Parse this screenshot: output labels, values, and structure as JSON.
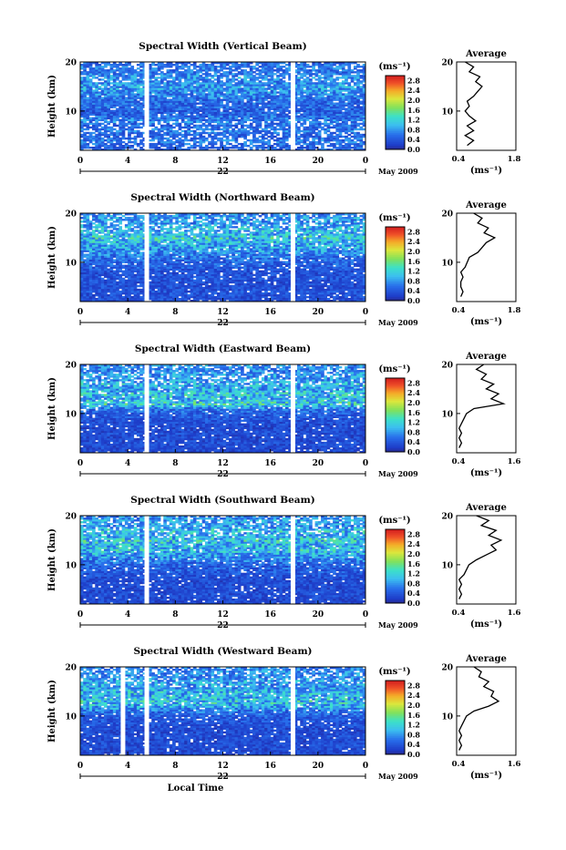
{
  "chart_data": [
    {
      "type": "heatmap",
      "title": "Spectral Width (Vertical Beam)",
      "ylabel": "Height (km)",
      "xticks": [
        "0",
        "4",
        "8",
        "12",
        "16",
        "20",
        "0"
      ],
      "yticks": [
        "10",
        "20"
      ],
      "xlim": [
        0,
        24
      ],
      "ylim": [
        2,
        20
      ],
      "date_label": "22",
      "month_label": "May 2009",
      "gaps_hours": [
        5.6,
        17.9
      ],
      "colorbar": {
        "unit": "(ms⁻¹)",
        "ticks": [
          "0.0",
          "0.4",
          "0.8",
          "1.2",
          "1.6",
          "2.0",
          "2.4",
          "2.8"
        ],
        "range": [
          0.0,
          3.0
        ]
      },
      "average_profile": {
        "title": "Average",
        "xlabel": "(ms⁻¹)",
        "xticks": [
          "0.4",
          "1.8"
        ],
        "yticks": [
          "10",
          "20"
        ],
        "xlim": [
          0.4,
          1.8
        ],
        "ylim": [
          2,
          20
        ],
        "heights_km": [
          3,
          4,
          5,
          6,
          7,
          8,
          9,
          10,
          11,
          12,
          13,
          14,
          15,
          16,
          17,
          18,
          19,
          20
        ],
        "values_ms": [
          0.65,
          0.8,
          0.6,
          0.8,
          0.65,
          0.85,
          0.7,
          0.6,
          0.7,
          0.65,
          0.8,
          0.9,
          1.0,
          0.85,
          0.95,
          0.7,
          0.8,
          0.6
        ]
      }
    },
    {
      "type": "heatmap",
      "title": "Spectral Width (Northward Beam)",
      "ylabel": "Height (km)",
      "xticks": [
        "0",
        "4",
        "8",
        "12",
        "16",
        "20",
        "0"
      ],
      "yticks": [
        "10",
        "20"
      ],
      "xlim": [
        0,
        24
      ],
      "ylim": [
        2,
        20
      ],
      "date_label": "22",
      "month_label": "May 2009",
      "gaps_hours": [
        5.6,
        17.9
      ],
      "colorbar": {
        "unit": "(ms⁻¹)",
        "ticks": [
          "0.0",
          "0.4",
          "0.8",
          "1.2",
          "1.6",
          "2.0",
          "2.4",
          "2.8"
        ],
        "range": [
          0.0,
          3.0
        ]
      },
      "average_profile": {
        "title": "Average",
        "xlabel": "(ms⁻¹)",
        "xticks": [
          "0.4",
          "1.8"
        ],
        "yticks": [
          "10",
          "20"
        ],
        "xlim": [
          0.4,
          1.8
        ],
        "ylim": [
          2,
          20
        ],
        "heights_km": [
          3,
          4,
          5,
          6,
          7,
          8,
          9,
          10,
          11,
          12,
          13,
          14,
          15,
          16,
          17,
          18,
          19,
          20
        ],
        "values_ms": [
          0.5,
          0.55,
          0.5,
          0.5,
          0.55,
          0.5,
          0.6,
          0.65,
          0.7,
          0.9,
          1.0,
          1.1,
          1.3,
          1.05,
          1.15,
          0.9,
          1.0,
          0.8
        ]
      }
    },
    {
      "type": "heatmap",
      "title": "Spectral Width (Eastward Beam)",
      "ylabel": "Height (km)",
      "xticks": [
        "0",
        "4",
        "8",
        "12",
        "16",
        "20",
        "0"
      ],
      "yticks": [
        "10",
        "20"
      ],
      "xlim": [
        0,
        24
      ],
      "ylim": [
        2,
        20
      ],
      "date_label": "22",
      "month_label": "May 2009",
      "gaps_hours": [
        5.6,
        17.9
      ],
      "colorbar": {
        "unit": "(ms⁻¹)",
        "ticks": [
          "0.0",
          "0.4",
          "0.8",
          "1.2",
          "1.6",
          "2.0",
          "2.4",
          "2.8"
        ],
        "range": [
          0.0,
          3.0
        ]
      },
      "average_profile": {
        "title": "Average",
        "xlabel": "(ms⁻¹)",
        "xticks": [
          "0.4",
          "1.6"
        ],
        "yticks": [
          "10",
          "20"
        ],
        "xlim": [
          0.4,
          1.6
        ],
        "ylim": [
          2,
          20
        ],
        "heights_km": [
          3,
          4,
          5,
          6,
          7,
          8,
          9,
          10,
          11,
          12,
          13,
          14,
          15,
          16,
          17,
          18,
          19,
          20
        ],
        "values_ms": [
          0.45,
          0.5,
          0.45,
          0.5,
          0.45,
          0.5,
          0.55,
          0.6,
          0.75,
          1.35,
          1.1,
          1.25,
          1.0,
          1.15,
          0.9,
          1.0,
          0.8,
          0.95
        ]
      }
    },
    {
      "type": "heatmap",
      "title": "Spectral Width (Southward Beam)",
      "ylabel": "Height (km)",
      "xticks": [
        "0",
        "4",
        "8",
        "12",
        "16",
        "20",
        "0"
      ],
      "yticks": [
        "10",
        "20"
      ],
      "xlim": [
        0,
        24
      ],
      "ylim": [
        2,
        20
      ],
      "date_label": "22",
      "month_label": "May 2009",
      "gaps_hours": [
        5.6,
        17.9
      ],
      "colorbar": {
        "unit": "(ms⁻¹)",
        "ticks": [
          "0.0",
          "0.4",
          "0.8",
          "1.2",
          "1.6",
          "2.0",
          "2.4",
          "2.8"
        ],
        "range": [
          0.0,
          3.0
        ]
      },
      "average_profile": {
        "title": "Average",
        "xlabel": "(ms⁻¹)",
        "xticks": [
          "0.4",
          "1.6"
        ],
        "yticks": [
          "10",
          "20"
        ],
        "xlim": [
          0.4,
          1.6
        ],
        "ylim": [
          2,
          20
        ],
        "heights_km": [
          3,
          4,
          5,
          6,
          7,
          8,
          9,
          10,
          11,
          12,
          13,
          14,
          15,
          16,
          17,
          18,
          19,
          20
        ],
        "values_ms": [
          0.45,
          0.5,
          0.45,
          0.5,
          0.45,
          0.55,
          0.6,
          0.65,
          0.8,
          1.0,
          1.2,
          1.1,
          1.3,
          1.05,
          1.2,
          0.9,
          1.05,
          0.8
        ]
      }
    },
    {
      "type": "heatmap",
      "title": "Spectral Width (Westward Beam)",
      "ylabel": "Height (km)",
      "xticks": [
        "0",
        "4",
        "8",
        "12",
        "16",
        "20",
        "0"
      ],
      "yticks": [
        "10",
        "20"
      ],
      "xlim": [
        0,
        24
      ],
      "ylim": [
        2,
        20
      ],
      "date_label": "22",
      "month_label": "May 2009",
      "xlabel": "Local Time",
      "gaps_hours": [
        3.6,
        5.6,
        17.9
      ],
      "colorbar": {
        "unit": "(ms⁻¹)",
        "ticks": [
          "0.0",
          "0.4",
          "0.8",
          "1.2",
          "1.6",
          "2.0",
          "2.4",
          "2.8"
        ],
        "range": [
          0.0,
          3.0
        ]
      },
      "average_profile": {
        "title": "Average",
        "xlabel": "(ms⁻¹)",
        "xticks": [
          "0.4",
          "1.6"
        ],
        "yticks": [
          "10",
          "20"
        ],
        "xlim": [
          0.4,
          1.6
        ],
        "ylim": [
          2,
          20
        ],
        "heights_km": [
          3,
          4,
          5,
          6,
          7,
          8,
          9,
          10,
          11,
          12,
          13,
          14,
          15,
          16,
          17,
          18,
          19,
          20
        ],
        "values_ms": [
          0.45,
          0.5,
          0.45,
          0.5,
          0.45,
          0.5,
          0.55,
          0.6,
          0.75,
          1.05,
          1.25,
          1.1,
          1.15,
          0.95,
          1.05,
          0.85,
          0.9,
          0.75
        ]
      }
    }
  ]
}
